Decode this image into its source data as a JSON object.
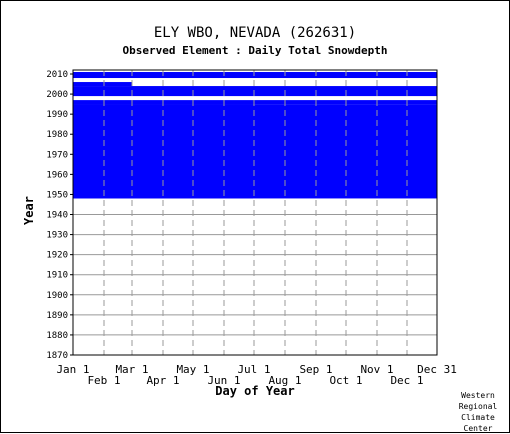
{
  "chart_data": {
    "type": "heatmap",
    "title": "ELY WBO, NEVADA   (262631)",
    "subtitle": "Observed Element : Daily Total Snowdepth",
    "xlabel": "Day of Year",
    "ylabel": "Year",
    "xlim": [
      1,
      365
    ],
    "ylim": [
      1870,
      2012
    ],
    "grid": true,
    "y_ticks": [
      1870,
      1880,
      1890,
      1900,
      1910,
      1920,
      1930,
      1940,
      1950,
      1960,
      1970,
      1980,
      1990,
      2000,
      2010
    ],
    "x_ticks_upper": [
      {
        "label": "Jan 1",
        "day": 1
      },
      {
        "label": "Mar 1",
        "day": 60
      },
      {
        "label": "May 1",
        "day": 121
      },
      {
        "label": "Jul 1",
        "day": 182
      },
      {
        "label": "Sep 1",
        "day": 244
      },
      {
        "label": "Nov 1",
        "day": 305
      },
      {
        "label": "Dec 31",
        "day": 365
      }
    ],
    "x_ticks_lower": [
      {
        "label": "Feb 1",
        "day": 32
      },
      {
        "label": "Apr 1",
        "day": 91
      },
      {
        "label": "Jun 1",
        "day": 152
      },
      {
        "label": "Aug 1",
        "day": 213
      },
      {
        "label": "Oct 1",
        "day": 274
      },
      {
        "label": "Dec 1",
        "day": 335
      }
    ],
    "series": [
      {
        "values": [
          {
            "year_from": 1948,
            "year_to": 1995,
            "day_from": 1,
            "day_to": 365
          },
          {
            "year_from": 1948,
            "year_to": 1995,
            "day_from": 1,
            "day_to": 181
          },
          {
            "year_from": 1995,
            "year_to": 1997,
            "day_from": 1,
            "day_to": 365
          },
          {
            "year_from": 1999,
            "year_to": 2004,
            "day_from": 1,
            "day_to": 365
          },
          {
            "year_from": 2004,
            "year_to": 2006,
            "day_from": 1,
            "day_to": 60
          },
          {
            "year_from": 2008,
            "year_to": 2011,
            "day_from": 1,
            "day_to": 365
          }
        ]
      }
    ]
  },
  "credit": [
    "Western",
    "Regional",
    "Climate",
    "Center"
  ],
  "colors": {
    "data": "#0000ff",
    "grid": "#999999",
    "axis": "#000000"
  }
}
